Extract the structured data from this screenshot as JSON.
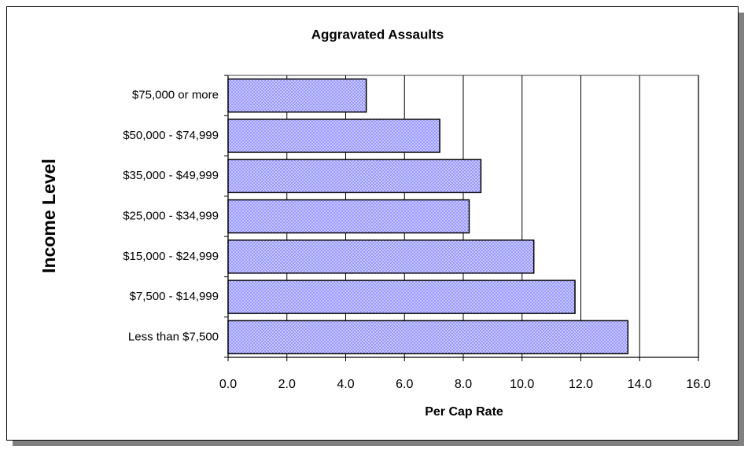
{
  "chart_data": {
    "type": "bar",
    "orientation": "horizontal",
    "title": "Aggravated Assaults",
    "x_label": "Per Cap Rate",
    "y_label": "Income Level",
    "categories": [
      "$75,000 or more",
      "$50,000 - $74,999",
      "$35,000 - $49,999",
      "$25,000 - $34,999",
      "$15,000 - $24,999",
      "$7,500 - $14,999",
      "Less than $7,500"
    ],
    "values": [
      4.7,
      7.2,
      8.6,
      8.2,
      10.4,
      11.8,
      13.6
    ],
    "color": "#9999ff",
    "xlim": [
      0,
      16
    ],
    "xticks": [
      {
        "value": 0,
        "label": "0.0"
      },
      {
        "value": 2,
        "label": "2.0"
      },
      {
        "value": 4,
        "label": "4.0"
      },
      {
        "value": 6,
        "label": "6.0"
      },
      {
        "value": 8,
        "label": "8.0"
      },
      {
        "value": 10,
        "label": "10.0"
      },
      {
        "value": 12,
        "label": "12.0"
      },
      {
        "value": 14,
        "label": "14.0"
      },
      {
        "value": 16,
        "label": "16.0"
      }
    ],
    "grid": true
  }
}
